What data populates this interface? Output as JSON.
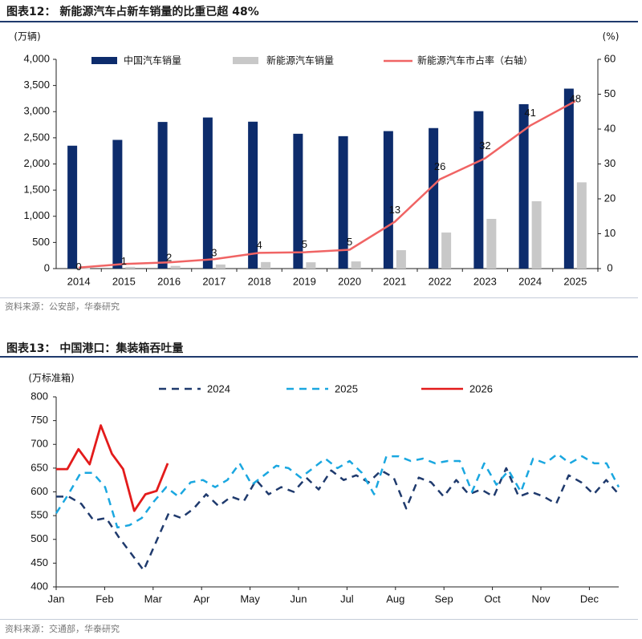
{
  "figure1": {
    "title": "图表12： 新能源汽车占新车销量的比重已超 48%",
    "source": "资料来源：公安部，华泰研究"
  },
  "figure2": {
    "title": "图表13： 中国港口：集装箱吞吐量",
    "source": "资料来源：交通部，华泰研究"
  },
  "colors": {
    "navy": "#0d2c6c",
    "grey": "#c8c8c8",
    "red_line": "#f06464",
    "blue_dash": "#1f3a6d",
    "cyan_dash": "#1aa7e0",
    "red": "#e31b1b",
    "rule": "#1f3a6d"
  },
  "chart_data": [
    {
      "type": "bar",
      "categories": [
        "2014",
        "2015",
        "2016",
        "2017",
        "2018",
        "2019",
        "2020",
        "2021",
        "2022",
        "2023",
        "2024",
        "2025"
      ],
      "left_unit": "(万辆)",
      "right_unit": "(%)",
      "ylim": [
        0,
        4000
      ],
      "yticks": [
        "0",
        "500",
        "1,000",
        "1,500",
        "2,000",
        "2,500",
        "3,000",
        "3,500",
        "4,000"
      ],
      "y2lim": [
        0,
        60
      ],
      "y2ticks": [
        "0",
        "10",
        "20",
        "30",
        "40",
        "50",
        "60"
      ],
      "series": [
        {
          "name": "中国汽车销量",
          "kind": "bar",
          "values": [
            2349,
            2460,
            2803,
            2888,
            2808,
            2577,
            2531,
            2628,
            2686,
            3009,
            3143,
            3440
          ]
        },
        {
          "name": "新能源汽车销量",
          "kind": "bar",
          "values": [
            7,
            33,
            51,
            78,
            125,
            121,
            137,
            352,
            689,
            950,
            1287,
            1649
          ]
        },
        {
          "name": "新能源汽车市占率（右轴）",
          "kind": "line",
          "axis": "right",
          "values": [
            0.3,
            1.3,
            1.8,
            2.7,
            4.5,
            4.7,
            5.4,
            13.4,
            25.6,
            31.6,
            41,
            48
          ]
        }
      ],
      "data_labels": [
        "0",
        "1",
        "2",
        "3",
        "4",
        "5",
        "5",
        "13",
        "26",
        "32",
        "41",
        "48"
      ],
      "legend": "top"
    },
    {
      "type": "line",
      "unit": "(万标准箱)",
      "ylim": [
        400,
        800
      ],
      "yticks": [
        "400",
        "450",
        "500",
        "550",
        "600",
        "650",
        "700",
        "750",
        "800"
      ],
      "xticks": [
        "Jan",
        "Feb",
        "Mar",
        "Apr",
        "May",
        "Jun",
        "Jul",
        "Aug",
        "Sep",
        "Oct",
        "Nov",
        "Dec"
      ],
      "legend": "top",
      "series": [
        {
          "name": "2024",
          "style": "dashed",
          "values": [
            590,
            590,
            575,
            540,
            545,
            505,
            470,
            435,
            495,
            555,
            545,
            565,
            595,
            570,
            590,
            580,
            625,
            595,
            610,
            600,
            630,
            605,
            645,
            625,
            635,
            620,
            645,
            630,
            565,
            630,
            620,
            590,
            625,
            595,
            605,
            590,
            650,
            590,
            600,
            590,
            575,
            635,
            620,
            595,
            625,
            595
          ]
        },
        {
          "name": "2025",
          "style": "dashed",
          "values": [
            555,
            595,
            640,
            640,
            610,
            525,
            530,
            545,
            580,
            610,
            590,
            620,
            625,
            610,
            625,
            660,
            615,
            635,
            655,
            650,
            630,
            650,
            670,
            650,
            665,
            640,
            595,
            675,
            675,
            665,
            670,
            660,
            665,
            665,
            600,
            660,
            615,
            645,
            600,
            670,
            660,
            680,
            660,
            675,
            660,
            660,
            610
          ]
        },
        {
          "name": "2026",
          "style": "solid",
          "values": [
            648,
            648,
            690,
            658,
            740,
            680,
            648,
            560,
            595,
            602,
            660
          ]
        }
      ]
    }
  ]
}
